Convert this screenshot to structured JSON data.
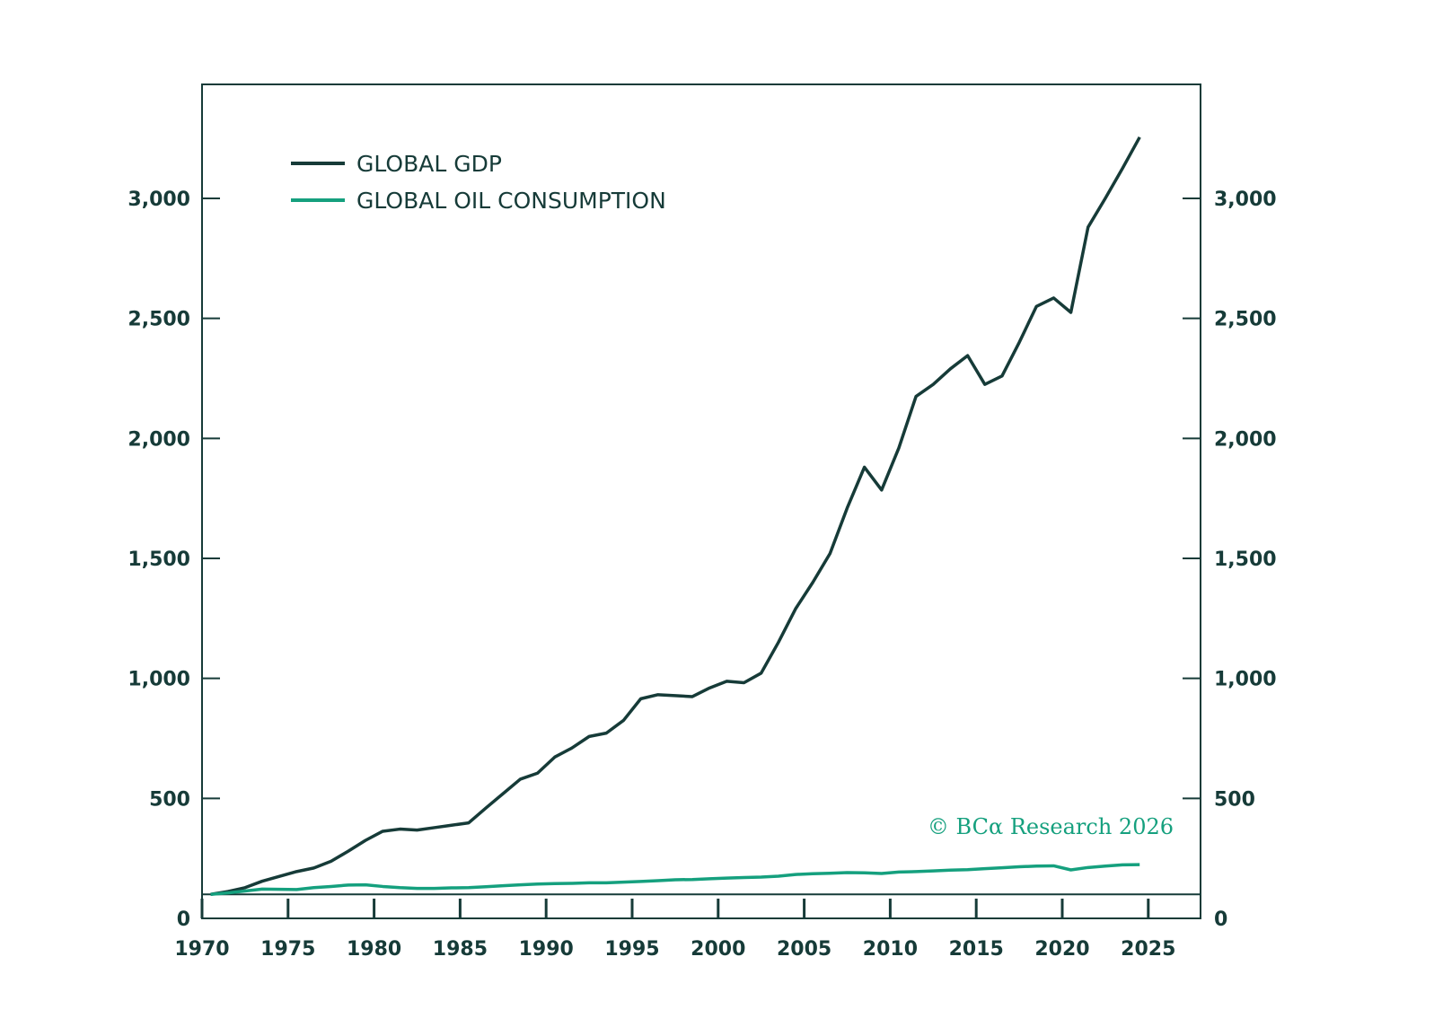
{
  "chart_data": {
    "type": "line",
    "title": "",
    "xlabel": "",
    "ylabel": "",
    "xlim": [
      1970,
      2028
    ],
    "ylim": [
      0,
      3400
    ],
    "x_ticks": [
      "1970",
      "1975",
      "1980",
      "1985",
      "1990",
      "1995",
      "2000",
      "2005",
      "2010",
      "2015",
      "2020",
      "2025"
    ],
    "y_ticks": [
      "0",
      "500",
      "1,000",
      "1,500",
      "2,000",
      "2,500",
      "3,000"
    ],
    "y_tick_values": [
      0,
      500,
      1000,
      1500,
      2000,
      2500,
      3000
    ],
    "reference_line": 100,
    "legend_position": "top-left",
    "x": [
      1970,
      1971,
      1972,
      1973,
      1974,
      1975,
      1976,
      1977,
      1978,
      1979,
      1980,
      1981,
      1982,
      1983,
      1984,
      1985,
      1986,
      1987,
      1988,
      1989,
      1990,
      1991,
      1992,
      1993,
      1994,
      1995,
      1996,
      1997,
      1998,
      1999,
      2000,
      2001,
      2002,
      2003,
      2004,
      2005,
      2006,
      2007,
      2008,
      2009,
      2010,
      2011,
      2012,
      2013,
      2014,
      2015,
      2016,
      2017,
      2018,
      2019,
      2020,
      2021,
      2022,
      2023,
      2024
    ],
    "series": [
      {
        "name": "GLOBAL GDP",
        "color": "#163b38",
        "values": [
          100,
          112,
          128,
          155,
          175,
          195,
          210,
          238,
          280,
          325,
          363,
          372,
          368,
          378,
          388,
          398,
          460,
          520,
          580,
          605,
          672,
          710,
          758,
          772,
          825,
          915,
          932,
          928,
          924,
          960,
          988,
          982,
          1022,
          1150,
          1290,
          1400,
          1520,
          1710,
          1880,
          1785,
          1960,
          2175,
          2225,
          2290,
          2345,
          2225,
          2260,
          2400,
          2550,
          2585,
          2525,
          2880,
          3000,
          3125,
          3255
        ]
      },
      {
        "name": "GLOBAL OIL CONSUMPTION",
        "color": "#15a07e",
        "values": [
          100,
          106,
          114,
          122,
          121,
          120,
          128,
          133,
          139,
          140,
          133,
          128,
          125,
          125,
          127,
          128,
          132,
          136,
          140,
          143,
          145,
          146,
          148,
          148,
          151,
          154,
          157,
          161,
          162,
          165,
          168,
          170,
          172,
          176,
          183,
          186,
          188,
          191,
          190,
          187,
          193,
          195,
          198,
          201,
          203,
          207,
          211,
          215,
          218,
          219,
          202,
          212,
          218,
          223,
          224
        ]
      }
    ],
    "annotations": {
      "copyright": "© BCα Research 2026"
    }
  }
}
